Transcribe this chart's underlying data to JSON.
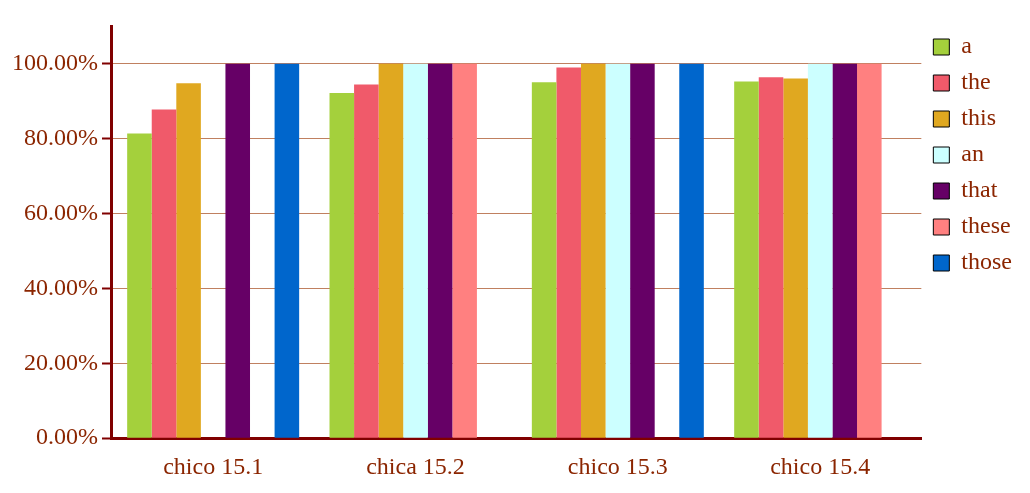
{
  "chart_data": {
    "type": "bar",
    "categories": [
      "chico 15.1",
      "chica 15.2",
      "chico 15.3",
      "chico 15.4"
    ],
    "series": [
      {
        "name": "a",
        "color": "#a4d03c",
        "values": [
          81.4,
          92.2,
          95.1,
          95.3
        ]
      },
      {
        "name": "the",
        "color": "#f05a6a",
        "values": [
          87.8,
          94.5,
          99.0,
          96.4
        ]
      },
      {
        "name": "this",
        "color": "#e0a820",
        "values": [
          94.8,
          100,
          100,
          96.1
        ]
      },
      {
        "name": "an",
        "color": "#ccffff",
        "values": [
          null,
          100,
          100,
          100
        ]
      },
      {
        "name": "that",
        "color": "#660066",
        "values": [
          100,
          100,
          100,
          100
        ]
      },
      {
        "name": "these",
        "color": "#ff8080",
        "values": [
          null,
          100,
          null,
          100
        ]
      },
      {
        "name": "those",
        "color": "#0066cc",
        "values": [
          100,
          null,
          100,
          null
        ]
      }
    ],
    "ylim": [
      0,
      110
    ],
    "yticks": [
      {
        "value": 0,
        "label": "0.00%"
      },
      {
        "value": 20,
        "label": "20.00%"
      },
      {
        "value": 40,
        "label": "40.00%"
      },
      {
        "value": 60,
        "label": "60.00%"
      },
      {
        "value": 80,
        "label": "80.00%"
      },
      {
        "value": 100,
        "label": "100.00%"
      }
    ],
    "grid": "y",
    "legend": "right"
  }
}
